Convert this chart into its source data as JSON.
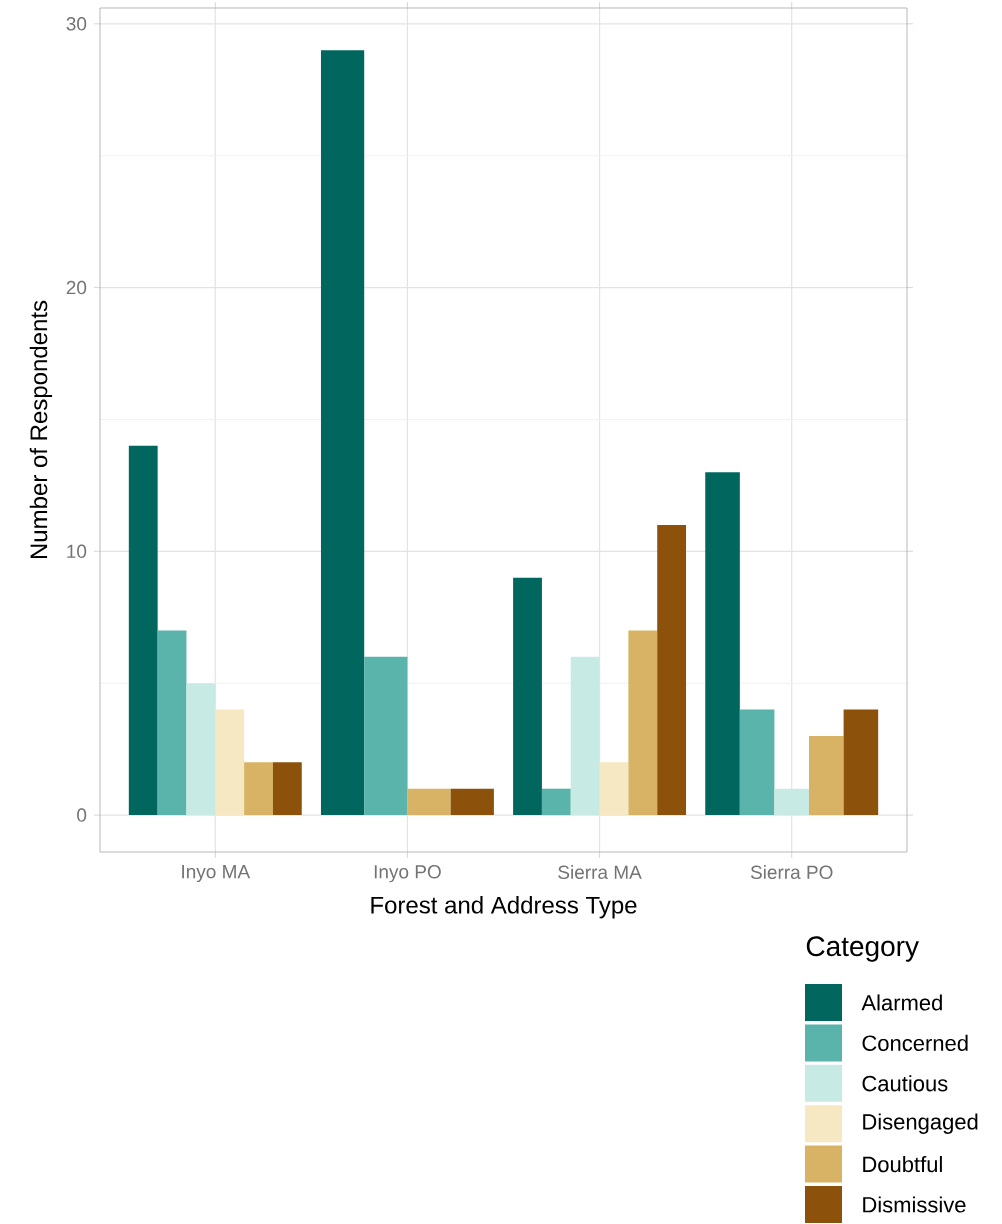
{
  "chart_data": {
    "type": "bar",
    "xlabel": "Forest and Address Type",
    "ylabel": "Number of Respondents",
    "legend_title": "Category",
    "categories": [
      "Inyo MA",
      "Inyo PO",
      "Sierra MA",
      "Sierra PO"
    ],
    "series": [
      {
        "name": "Alarmed",
        "color": "#01665e",
        "values": [
          14,
          29,
          9,
          13
        ]
      },
      {
        "name": "Concerned",
        "color": "#5ab4ac",
        "values": [
          7,
          6,
          1,
          4
        ]
      },
      {
        "name": "Cautious",
        "color": "#c7eae5",
        "values": [
          5,
          null,
          6,
          1
        ]
      },
      {
        "name": "Disengaged",
        "color": "#f6e8c3",
        "values": [
          4,
          null,
          2,
          null
        ]
      },
      {
        "name": "Doubtful",
        "color": "#d8b365",
        "values": [
          2,
          1,
          7,
          3
        ]
      },
      {
        "name": "Dismissive",
        "color": "#8c510a",
        "values": [
          2,
          1,
          11,
          4
        ]
      }
    ],
    "ylim": [
      -1.4,
      30.6
    ],
    "yticks": [
      0,
      10,
      20,
      30
    ],
    "grid": true,
    "legend": "bottom right"
  }
}
